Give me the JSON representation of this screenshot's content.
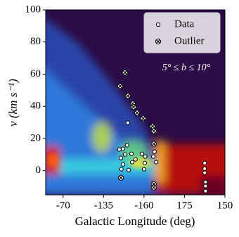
{
  "chart_data": {
    "type": "scatter",
    "xlabel": "Galactic Longitude (deg)",
    "ylabel": "v (km s⁻¹)",
    "annotation": "5° ≤ b ≤ 10°",
    "xlim": [
      0.57,
      5
    ],
    "ylim": [
      -15,
      100
    ],
    "xticks": [
      {
        "value": 1,
        "label": "-70"
      },
      {
        "value": 2,
        "label": "-135"
      },
      {
        "value": 3,
        "label": "-160"
      },
      {
        "value": 4,
        "label": "175"
      },
      {
        "value": 5,
        "label": "150"
      }
    ],
    "yticks": [
      0,
      20,
      40,
      60,
      80,
      100
    ],
    "legend": "upper right",
    "series": [
      {
        "name": "Data",
        "color": "#ffffff",
        "x": [
          2.6,
          2.48,
          2.58,
          2.39,
          2.43,
          2.53,
          2.69,
          2.79,
          2.71,
          2.95,
          3.03,
          3.02,
          3.26,
          3.23,
          3.3,
          3.0,
          2.44,
          2.48,
          2.62,
          4.5,
          4.5,
          4.5,
          4.52,
          4.52,
          4.52
        ],
        "values": [
          29.8,
          13.6,
          15.8,
          13.2,
          7.9,
          10.1,
          10.5,
          7,
          5.3,
          10.5,
          8.8,
          4.8,
          11.8,
          8.8,
          5.3,
          0.9,
          0.9,
          3.9,
          0.4,
          4.8,
          1.3,
          -1.3,
          -7,
          -9.6,
          -12.7
        ]
      },
      {
        "name": "Outlier",
        "color": "#ffffff",
        "x": [
          2.53,
          2.41,
          2.6,
          2.72,
          2.74,
          2.83,
          2.98,
          3.21,
          3.24,
          3.24,
          3.24,
          3.24,
          2.43
        ],
        "values": [
          61,
          52.6,
          46.5,
          41.7,
          39.5,
          36,
          32.5,
          27.6,
          24.6,
          16.7,
          -8.3,
          -10.5,
          -4.4
        ]
      }
    ]
  }
}
